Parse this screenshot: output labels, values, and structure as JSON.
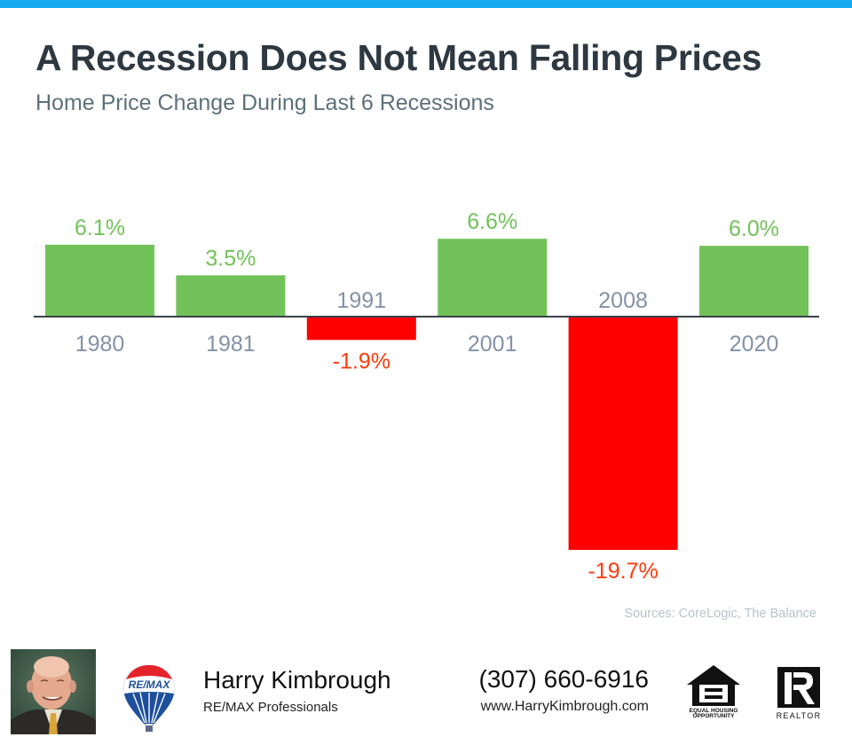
{
  "header": {
    "title": "A Recession Does Not Mean Falling Prices",
    "subtitle": "Home Price Change During Last 6 Recessions"
  },
  "chart_data": {
    "type": "bar",
    "title": "A Recession Does Not Mean Falling Prices",
    "subtitle": "Home Price Change During Last 6 Recessions",
    "xlabel": "",
    "ylabel": "",
    "categories": [
      "1980",
      "1981",
      "1991",
      "2001",
      "2008",
      "2020"
    ],
    "values": [
      6.1,
      3.5,
      -1.9,
      6.6,
      -19.7,
      6.0
    ],
    "data_labels": [
      "6.1%",
      "3.5%",
      "-1.9%",
      "6.6%",
      "-19.7%",
      "6.0%"
    ],
    "ylim": [
      -19.7,
      6.6
    ],
    "grid": false,
    "legend": "none",
    "colors": {
      "positive_bar": "#72c25a",
      "positive_label": "#72c25a",
      "negative_bar": "#ff0000",
      "negative_label": "#ff3a0a",
      "category_label": "#8392a6",
      "axis": "#3a424a"
    }
  },
  "source": "Sources: CoreLogic, The Balance",
  "footer": {
    "agent_name": "Harry Kimbrough",
    "company": "RE/MAX Professionals",
    "phone": "(307) 660-6916",
    "website": "www.HarryKimbrough.com",
    "remax_logo_text": "RE/MAX",
    "eho_line1": "EQUAL HOUSING",
    "eho_line2": "OPPORTUNITY",
    "realtor_text": "REALTOR"
  },
  "colors": {
    "top_bar": "#14aaf0",
    "title": "#2e3841",
    "subtitle": "#5e707a"
  }
}
